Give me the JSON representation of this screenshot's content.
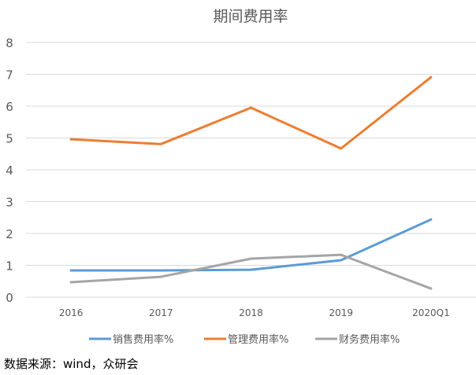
{
  "chart_data": {
    "type": "line",
    "title": "期间费用率",
    "categories": [
      "2016",
      "2017",
      "2018",
      "2019",
      "2020Q1"
    ],
    "ylim": [
      0,
      8
    ],
    "yticks": [
      0,
      1,
      2,
      3,
      4,
      5,
      6,
      7,
      8
    ],
    "grid": true,
    "legend": "bottom",
    "series": [
      {
        "name": "销售费用率%",
        "color": "#5B9BD5",
        "values": [
          0.84,
          0.84,
          0.86,
          1.16,
          2.44
        ]
      },
      {
        "name": "管理费用率%",
        "color": "#ED7D31",
        "values": [
          4.96,
          4.81,
          5.95,
          4.67,
          6.91
        ]
      },
      {
        "name": "财务费用率%",
        "color": "#A5A5A5",
        "values": [
          0.47,
          0.64,
          1.21,
          1.33,
          0.27
        ]
      }
    ]
  },
  "source": "数据来源：wind，众研会"
}
